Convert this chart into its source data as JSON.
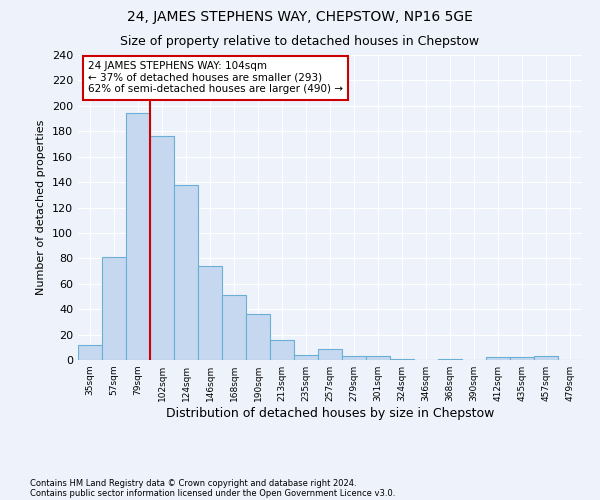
{
  "title": "24, JAMES STEPHENS WAY, CHEPSTOW, NP16 5GE",
  "subtitle": "Size of property relative to detached houses in Chepstow",
  "xlabel": "Distribution of detached houses by size in Chepstow",
  "ylabel": "Number of detached properties",
  "categories": [
    "35sqm",
    "57sqm",
    "79sqm",
    "102sqm",
    "124sqm",
    "146sqm",
    "168sqm",
    "190sqm",
    "213sqm",
    "235sqm",
    "257sqm",
    "279sqm",
    "301sqm",
    "324sqm",
    "346sqm",
    "368sqm",
    "390sqm",
    "412sqm",
    "435sqm",
    "457sqm",
    "479sqm"
  ],
  "values": [
    12,
    81,
    194,
    176,
    138,
    74,
    51,
    36,
    16,
    4,
    9,
    3,
    3,
    1,
    0,
    1,
    0,
    2,
    2,
    3,
    0
  ],
  "bar_color": "#c5d8f0",
  "bar_edge_color": "#6baed6",
  "property_line_x": 3,
  "annotation_text": "24 JAMES STEPHENS WAY: 104sqm\n← 37% of detached houses are smaller (293)\n62% of semi-detached houses are larger (490) →",
  "annotation_box_color": "#ffffff",
  "annotation_box_edge_color": "#cc0000",
  "vline_color": "#cc0000",
  "ylim": [
    0,
    240
  ],
  "yticks": [
    0,
    20,
    40,
    60,
    80,
    100,
    120,
    140,
    160,
    180,
    200,
    220,
    240
  ],
  "footnote1": "Contains HM Land Registry data © Crown copyright and database right 2024.",
  "footnote2": "Contains public sector information licensed under the Open Government Licence v3.0.",
  "title_fontsize": 10,
  "subtitle_fontsize": 9,
  "xlabel_fontsize": 9,
  "ylabel_fontsize": 8,
  "bg_color": "#eef2fa",
  "grid_color": "#ffffff",
  "annotation_fontsize": 7.5
}
